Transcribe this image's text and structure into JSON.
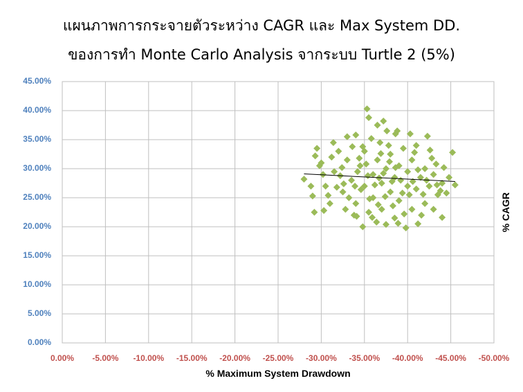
{
  "chart_data": {
    "type": "scatter",
    "title": "แผนภาพการกระจายตัวระหว่าง CAGR และ Max System DD.",
    "subtitle": "ของการทำ Monte Carlo Analysis จากระบบ Turtle 2 (5%)",
    "x_label": "% Maximum System Drawdown",
    "y_label": "% CAGR",
    "color": "#9bbb59",
    "grid": true,
    "xlim": [
      0,
      -50
    ],
    "xticks": [
      {
        "value": 0,
        "label": "0.00%"
      },
      {
        "value": -5,
        "label": "-5.00%"
      },
      {
        "value": -10,
        "label": "-10.00%"
      },
      {
        "value": -15,
        "label": "-15.00%"
      },
      {
        "value": -20,
        "label": "-20.00%"
      },
      {
        "value": -25,
        "label": "-25.00%"
      },
      {
        "value": -30,
        "label": "-30.00%"
      },
      {
        "value": -35,
        "label": "-35.00%"
      },
      {
        "value": -40,
        "label": "-40.00%"
      },
      {
        "value": -45,
        "label": "-45.00%"
      },
      {
        "value": -50,
        "label": "-50.00%"
      }
    ],
    "ylim": [
      0,
      45
    ],
    "yticks": [
      {
        "value": 0,
        "label": "0.00%"
      },
      {
        "value": 5,
        "label": "5.00%"
      },
      {
        "value": 10,
        "label": "10.00%"
      },
      {
        "value": 15,
        "label": "15.00%"
      },
      {
        "value": 20,
        "label": "20.00%"
      },
      {
        "value": 25,
        "label": "25.00%"
      },
      {
        "value": 30,
        "label": "30.00%"
      },
      {
        "value": 35,
        "label": "35.00%"
      },
      {
        "value": 40,
        "label": "40.00%"
      },
      {
        "value": 45,
        "label": "45.00%"
      }
    ],
    "x": [
      -28,
      -29.5,
      -29.2,
      -29,
      -35.3,
      -35.5,
      -36.5,
      -37.2,
      -38.8,
      -38.6,
      -42.3,
      -45.2,
      -45.5,
      -44.8,
      -44,
      -39.8,
      -34.8,
      -37.5,
      -41.2,
      -33.8,
      -43.5,
      -44.5,
      -43.3,
      -42.6,
      -30,
      -30.5,
      -31,
      -31.5,
      -32,
      -32.5,
      -33,
      -33.5,
      -34,
      -34,
      -34.5,
      -35,
      -35,
      -35.5,
      -36,
      -36,
      -36.5,
      -36.8,
      -37,
      -37,
      -37.5,
      -38,
      -38,
      -38.5,
      -38.5,
      -39,
      -39,
      -39.5,
      -40,
      -40,
      -40.5,
      -40.5,
      -41,
      -41,
      -41.5,
      -42,
      -42,
      -42.5,
      -43,
      -43,
      -44,
      -30.2,
      -31.2,
      -32.2,
      -33.2,
      -34.2,
      -35.2,
      -36.2,
      -37.2,
      -38.2,
      -39.2,
      -40.2,
      -41.2,
      -35.8,
      -33.6,
      -37.8,
      -36.6,
      -34.6,
      -39.6,
      -32.8,
      -31.8,
      -42.8,
      -40.8,
      -37.4,
      -35.4,
      -34.4,
      -38.6,
      -36.9,
      -33.9,
      -30.8,
      -29.8,
      -43.8,
      -41.6,
      -38.9,
      -36.4,
      -35.9,
      -34.1,
      -32.4,
      -44.2,
      -40.3,
      -37.6,
      -33,
      -31.4,
      -29.3,
      -28.8,
      -30.3,
      -39.4,
      -42.2,
      -36.7,
      -35.6,
      -37.9,
      -41.8,
      -34.8,
      -32.6,
      -38.3,
      -40.6,
      -43.4
    ],
    "values": [
      28.2,
      33.5,
      22.5,
      25.3,
      40.3,
      38.8,
      37.5,
      38.2,
      36.5,
      36,
      35.6,
      32.8,
      27.2,
      28.5,
      21.6,
      19.8,
      20,
      20.4,
      20.5,
      22,
      25.5,
      25.8,
      30.8,
      33.2,
      31,
      27,
      24,
      29.5,
      33,
      26,
      31.5,
      28,
      35.8,
      24,
      30.5,
      27,
      33,
      22.5,
      29,
      25,
      31.5,
      34.5,
      27.5,
      23,
      30,
      32.5,
      26,
      28.5,
      21.5,
      30.5,
      24.5,
      33.5,
      27,
      29.5,
      23,
      31.5,
      26.5,
      34,
      28.5,
      24,
      30,
      27,
      29,
      23,
      27.5,
      29,
      32,
      28.8,
      25,
      29.5,
      30.8,
      27.2,
      29.2,
      27.8,
      28,
      25.5,
      29.8,
      35.2,
      33.8,
      34,
      23.8,
      26.4,
      22.2,
      23,
      26.8,
      31.8,
      32.8,
      25.2,
      28.8,
      31.8,
      30.2,
      32.6,
      27,
      25.4,
      30.5,
      26.2,
      22,
      20.6,
      20.8,
      21.6,
      21.8,
      30.2,
      30.2,
      36,
      36.5,
      35.5,
      34.5,
      32.2,
      27,
      22.8,
      25.8,
      28,
      28.4,
      24.8,
      31.2,
      25.6,
      33.8,
      27.4,
      23.6,
      27.8,
      27.2
    ],
    "trendline": {
      "x": [
        -28,
        -45.5
      ],
      "values": [
        29.1,
        27.8
      ],
      "color": "#000000"
    }
  }
}
